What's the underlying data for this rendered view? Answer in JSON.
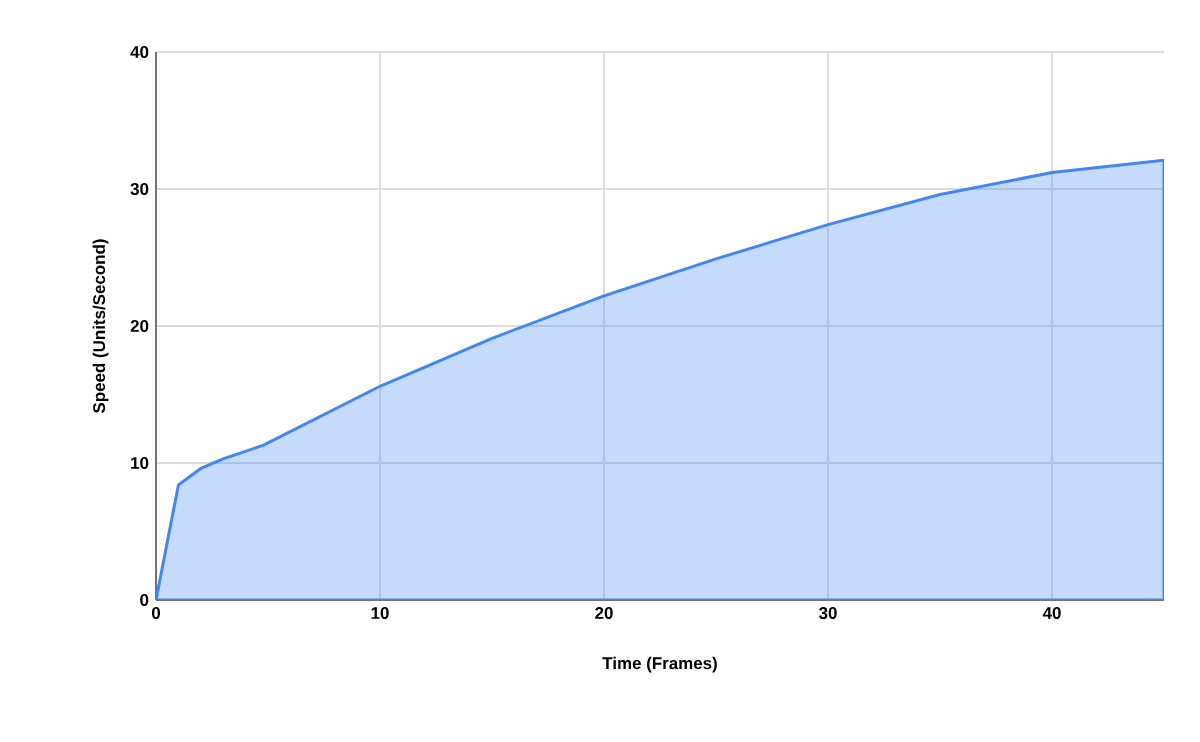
{
  "chart_data": {
    "type": "area",
    "xlabel": "Time (Frames)",
    "ylabel": "Speed (Units/Second)",
    "x": [
      0,
      1,
      2,
      3,
      4.8,
      10,
      15,
      20,
      25,
      30,
      35,
      40,
      45
    ],
    "series": [
      {
        "color": "#4285f4",
        "values": [
          0,
          8.4,
          9.6,
          10.3,
          11.3,
          15.6,
          19.1,
          22.2,
          24.9,
          27.4,
          29.6,
          31.2,
          32.1
        ]
      }
    ],
    "xlim": [
      0,
      45
    ],
    "ylim": [
      0,
      40
    ],
    "xticks": [
      0,
      10,
      20,
      30,
      40
    ],
    "yticks": [
      0,
      10,
      20,
      30,
      40
    ],
    "grid": true
  }
}
